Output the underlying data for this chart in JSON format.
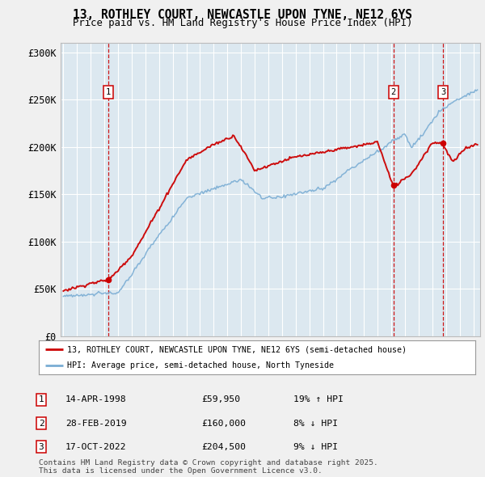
{
  "title": "13, ROTHLEY COURT, NEWCASTLE UPON TYNE, NE12 6YS",
  "subtitle": "Price paid vs. HM Land Registry's House Price Index (HPI)",
  "ylabel_ticks": [
    "£0",
    "£50K",
    "£100K",
    "£150K",
    "£200K",
    "£250K",
    "£300K"
  ],
  "ytick_vals": [
    0,
    50000,
    100000,
    150000,
    200000,
    250000,
    300000
  ],
  "ylim": [
    0,
    310000
  ],
  "xlim_start": 1994.8,
  "xlim_end": 2025.5,
  "transactions": [
    {
      "num": 1,
      "date_label": "14-APR-1998",
      "price": 59950,
      "pct": "19% ↑ HPI",
      "year_x": 1998.28
    },
    {
      "num": 2,
      "date_label": "28-FEB-2019",
      "price": 160000,
      "pct": "8% ↓ HPI",
      "year_x": 2019.16
    },
    {
      "num": 3,
      "date_label": "17-OCT-2022",
      "price": 204500,
      "pct": "9% ↓ HPI",
      "year_x": 2022.79
    }
  ],
  "legend_property_label": "13, ROTHLEY COURT, NEWCASTLE UPON TYNE, NE12 6YS (semi-detached house)",
  "legend_hpi_label": "HPI: Average price, semi-detached house, North Tyneside",
  "footer_line1": "Contains HM Land Registry data © Crown copyright and database right 2025.",
  "footer_line2": "This data is licensed under the Open Government Licence v3.0.",
  "property_color": "#cc0000",
  "hpi_color": "#7aadd4",
  "background_color": "#dce8f0",
  "grid_color": "#ffffff",
  "vline_color": "#cc0000",
  "marker_color": "#cc0000",
  "fig_bg": "#f0f0f0"
}
